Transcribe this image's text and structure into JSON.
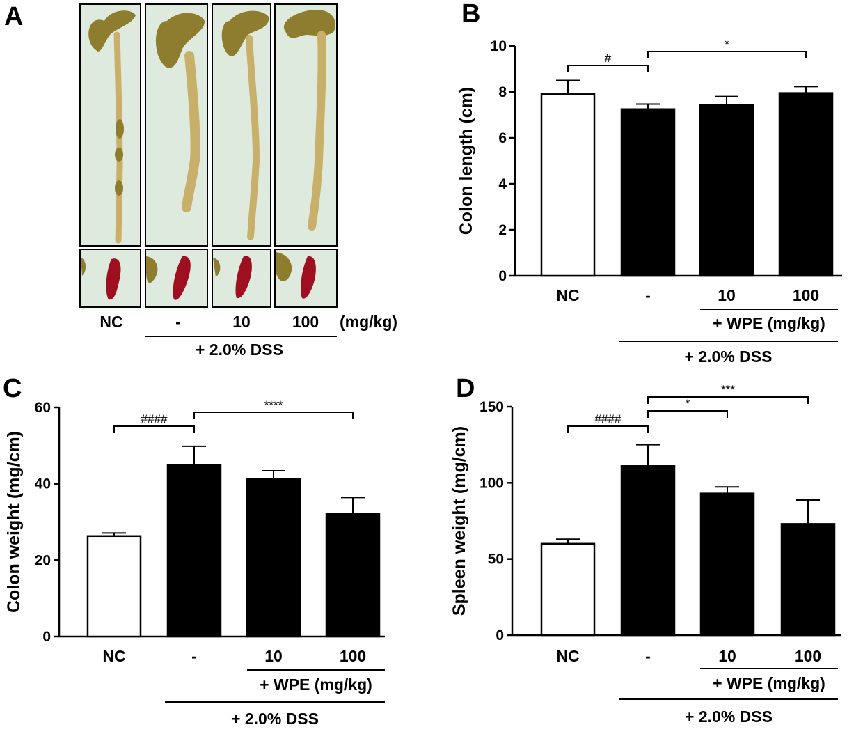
{
  "panels": {
    "A": {
      "letter": "A",
      "labels": [
        "NC",
        "-",
        "10",
        "100"
      ],
      "unit": "(mg/kg)",
      "dss": "+ 2.0% DSS"
    },
    "B": {
      "letter": "B"
    },
    "C": {
      "letter": "C"
    },
    "D": {
      "letter": "D"
    }
  },
  "colors": {
    "tissue_background": "#dfeadf",
    "colon": "#c9b06a",
    "cecum": "#8e7d2e",
    "spleen": "#9e1020",
    "nc_bar": "#ffffff",
    "treated_bar": "#000000"
  },
  "chart_data": [
    {
      "id": "B",
      "type": "bar",
      "categories": [
        "NC",
        "-",
        "10",
        "100"
      ],
      "values": [
        7.9,
        7.25,
        7.42,
        7.95
      ],
      "errors": [
        0.6,
        0.22,
        0.38,
        0.28
      ],
      "ylabel": "Colon length (cm)",
      "ylim": [
        0,
        10
      ],
      "yticks": [
        0,
        2,
        4,
        6,
        8,
        10
      ],
      "wpe_label": "+ WPE (mg/kg)",
      "dss_label": "+ 2.0% DSS",
      "annotations": [
        {
          "from": 0,
          "to": 1,
          "text": "#"
        },
        {
          "from": 1,
          "to": 3,
          "text": "*"
        }
      ]
    },
    {
      "id": "C",
      "type": "bar",
      "categories": [
        "NC",
        "-",
        "10",
        "100"
      ],
      "values": [
        26.3,
        45.0,
        41.2,
        32.2
      ],
      "errors": [
        0.8,
        4.8,
        2.2,
        4.2
      ],
      "ylabel": "Colon weight (mg/cm)",
      "ylim": [
        0,
        60
      ],
      "yticks": [
        0,
        20,
        40,
        60
      ],
      "wpe_label": "+ WPE (mg/kg)",
      "dss_label": "+ 2.0% DSS",
      "annotations": [
        {
          "from": 0,
          "to": 1,
          "text": "####"
        },
        {
          "from": 1,
          "to": 3,
          "text": "****"
        }
      ]
    },
    {
      "id": "D",
      "type": "bar",
      "categories": [
        "NC",
        "-",
        "10",
        "100"
      ],
      "values": [
        60.0,
        111.0,
        93.0,
        73.0
      ],
      "errors": [
        3.0,
        14.0,
        4.3,
        15.7
      ],
      "ylabel": "Spleen weight (mg/cm)",
      "ylim": [
        0,
        150
      ],
      "yticks": [
        0,
        50,
        100,
        150
      ],
      "wpe_label": "+ WPE (mg/kg)",
      "dss_label": "+ 2.0% DSS",
      "annotations": [
        {
          "from": 0,
          "to": 1,
          "text": "####"
        },
        {
          "from": 1,
          "to": 2,
          "text": "*"
        },
        {
          "from": 1,
          "to": 3,
          "text": "***"
        }
      ]
    }
  ]
}
